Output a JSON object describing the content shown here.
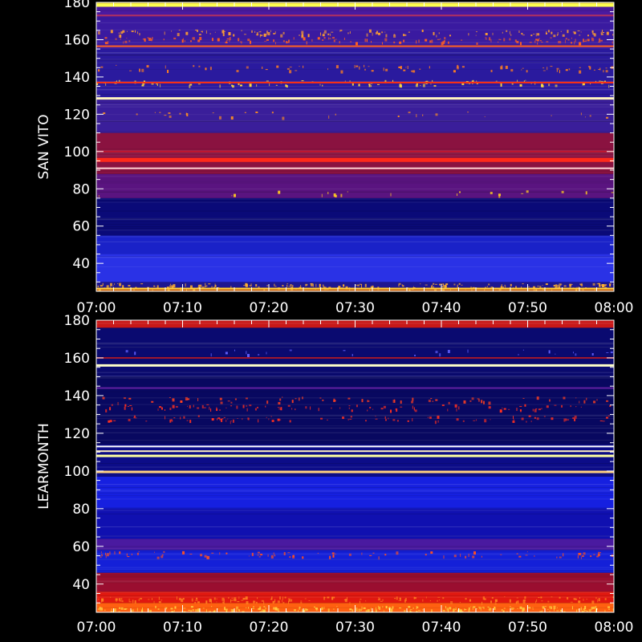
{
  "chart_data": [
    {
      "type": "heatmap",
      "ylabel": "SAN VITO",
      "xlabel": "",
      "title": "",
      "x_ticks": [
        "07:00",
        "07:10",
        "07:20",
        "07:30",
        "07:40",
        "07:50",
        "08:00"
      ],
      "xlim": [
        "07:00",
        "08:00"
      ],
      "y_ticks": [
        40,
        60,
        80,
        100,
        120,
        140,
        160,
        180
      ],
      "ylim": [
        25,
        180
      ],
      "colormap": [
        "#00004a",
        "#0000a0",
        "#2020ff",
        "#5a2ad0",
        "#b00060",
        "#ff2020",
        "#ffa000",
        "#ffff60"
      ],
      "background_bands": [
        {
          "range": [
            25,
            27
          ],
          "color": "#e07010"
        },
        {
          "range": [
            27,
            30
          ],
          "color": "#1e1690"
        },
        {
          "range": [
            30,
            45
          ],
          "color": "#2a32e6"
        },
        {
          "range": [
            45,
            55
          ],
          "color": "#1a22c8"
        },
        {
          "range": [
            55,
            75
          ],
          "color": "#0a0a78"
        },
        {
          "range": [
            75,
            88
          ],
          "color": "#5a1480"
        },
        {
          "range": [
            88,
            110
          ],
          "color": "#8a1240"
        },
        {
          "range": [
            110,
            128
          ],
          "color": "#3a1e9a"
        },
        {
          "range": [
            128,
            155
          ],
          "color": "#2a1a9e"
        },
        {
          "range": [
            155,
            172
          ],
          "color": "#3a1aa0"
        },
        {
          "range": [
            172,
            178
          ],
          "color": "#4a1aa0"
        },
        {
          "range": [
            178,
            180
          ],
          "color": "#d8c020"
        }
      ],
      "lines": [
        {
          "freq": 26.5,
          "color": "#ffd040",
          "width": 2
        },
        {
          "freq": 91,
          "color": "#ffd0d0",
          "width": 2
        },
        {
          "freq": 95.5,
          "color": "#ff2a1a",
          "width": 5
        },
        {
          "freq": 100,
          "color": "#c01830",
          "width": 2
        },
        {
          "freq": 128.5,
          "color": "#fff4c0",
          "width": 3
        },
        {
          "freq": 137,
          "color": "#ff3010",
          "width": 2
        },
        {
          "freq": 156.5,
          "color": "#ff6020",
          "width": 2
        },
        {
          "freq": 173,
          "color": "#b03060",
          "width": 2
        },
        {
          "freq": 178.5,
          "color": "#ffff50",
          "width": 4
        }
      ],
      "speckle_bands": [
        {
          "freq": 28,
          "density": 0.9,
          "color": "#ffb030"
        },
        {
          "freq": 78,
          "density": 0.08,
          "color": "#ffcc20"
        },
        {
          "freq": 120,
          "density": 0.12,
          "color": "#ff9020"
        },
        {
          "freq": 137,
          "density": 0.35,
          "color": "#ffe040"
        },
        {
          "freq": 145,
          "density": 0.3,
          "color": "#ff8020"
        },
        {
          "freq": 160,
          "density": 0.5,
          "color": "#ff6020"
        },
        {
          "freq": 164,
          "density": 0.5,
          "color": "#ffa030"
        }
      ]
    },
    {
      "type": "heatmap",
      "ylabel": "LEARMONTH",
      "xlabel": "",
      "title": "",
      "x_ticks": [
        "07:00",
        "07:10",
        "07:20",
        "07:30",
        "07:40",
        "07:50",
        "08:00"
      ],
      "xlim": [
        "07:00",
        "08:00"
      ],
      "y_ticks": [
        40,
        60,
        80,
        100,
        120,
        140,
        160,
        180
      ],
      "ylim": [
        25,
        180
      ],
      "colormap": [
        "#00004a",
        "#0000a0",
        "#2020ff",
        "#5a2ad0",
        "#b00060",
        "#ff2020",
        "#ffa000",
        "#ffff60"
      ],
      "background_bands": [
        {
          "range": [
            25,
            30
          ],
          "color": "#ff6010"
        },
        {
          "range": [
            30,
            36
          ],
          "color": "#e01810"
        },
        {
          "range": [
            36,
            46
          ],
          "color": "#9a0e30"
        },
        {
          "range": [
            46,
            58
          ],
          "color": "#1420d8"
        },
        {
          "range": [
            58,
            64
          ],
          "color": "#4a1aa0"
        },
        {
          "range": [
            64,
            80
          ],
          "color": "#1010b0"
        },
        {
          "range": [
            80,
            97
          ],
          "color": "#1620e0"
        },
        {
          "range": [
            97,
            114
          ],
          "color": "#0c0c88"
        },
        {
          "range": [
            114,
            150
          ],
          "color": "#080860"
        },
        {
          "range": [
            150,
            176
          ],
          "color": "#0a0a70"
        },
        {
          "range": [
            176,
            180
          ],
          "color": "#c81818"
        }
      ],
      "lines": [
        {
          "freq": 99.5,
          "color": "#ffd080",
          "width": 3
        },
        {
          "freq": 108,
          "color": "#ffffa0",
          "width": 3
        },
        {
          "freq": 110.5,
          "color": "#fff0c0",
          "width": 2
        },
        {
          "freq": 113,
          "color": "#ffffff",
          "width": 2
        },
        {
          "freq": 156,
          "color": "#ffffc8",
          "width": 3
        },
        {
          "freq": 160,
          "color": "#a01830",
          "width": 2
        },
        {
          "freq": 144,
          "color": "#6020a0",
          "width": 2
        }
      ],
      "speckle_bands": [
        {
          "freq": 27,
          "density": 0.9,
          "color": "#ffd040"
        },
        {
          "freq": 32,
          "density": 0.6,
          "color": "#ff8020"
        },
        {
          "freq": 56,
          "density": 0.35,
          "color": "#ff5020"
        },
        {
          "freq": 128,
          "density": 0.35,
          "color": "#ff3020"
        },
        {
          "freq": 134,
          "density": 0.35,
          "color": "#ff3020"
        },
        {
          "freq": 138,
          "density": 0.25,
          "color": "#ff4020"
        },
        {
          "freq": 163,
          "density": 0.1,
          "color": "#6060ff"
        }
      ]
    }
  ]
}
